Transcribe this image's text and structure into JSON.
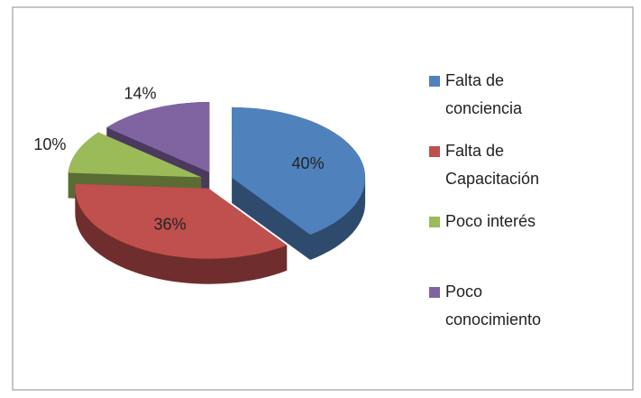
{
  "chart_data": {
    "type": "pie",
    "categories": [
      "Falta de conciencia",
      "Falta de Capacitación",
      "Poco interés",
      "Poco conocimiento"
    ],
    "values": [
      40,
      36,
      10,
      14
    ],
    "value_labels": [
      "40%",
      "36%",
      "10%",
      "14%"
    ],
    "colors": [
      "#4f81bd",
      "#c0504d",
      "#9bbb59",
      "#8064a2"
    ],
    "legend": "right"
  }
}
